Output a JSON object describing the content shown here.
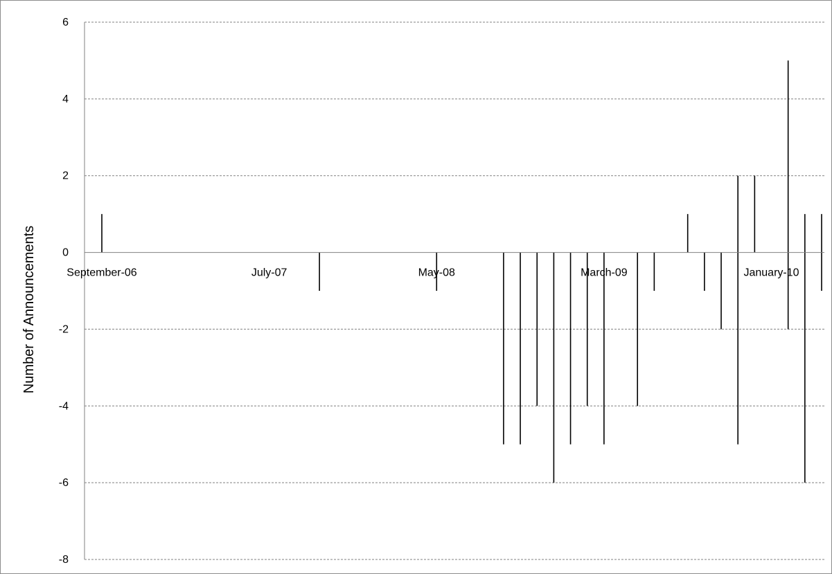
{
  "chart_data": {
    "type": "bar",
    "title": "",
    "xlabel": "",
    "ylabel": "Number of Announcements",
    "ylim": [
      -8,
      6
    ],
    "yticks": [
      -8,
      -6,
      -4,
      -2,
      0,
      2,
      4,
      6
    ],
    "grid": true,
    "legend": "none",
    "x_tick_labels": [
      "September-06",
      "July-07",
      "May-08",
      "March-09",
      "January-10"
    ],
    "x_tick_months": [
      "2006-09",
      "2007-07",
      "2008-05",
      "2009-03",
      "2010-01"
    ],
    "x_range": [
      "2006-08",
      "2010-08"
    ],
    "series": [
      {
        "months": [
          "2006-09",
          "2007-10",
          "2008-05",
          "2008-09",
          "2008-10",
          "2008-11",
          "2008-12",
          "2009-01",
          "2009-02",
          "2009-03",
          "2009-05",
          "2009-06",
          "2009-08",
          "2009-09",
          "2009-10",
          "2009-11",
          "2009-12",
          "2010-01",
          "2010-02",
          "2010-03",
          "2010-04"
        ],
        "values": [
          1,
          0,
          0,
          0,
          0,
          0,
          0,
          0,
          0,
          0,
          0,
          0,
          1,
          0,
          0,
          2,
          2,
          0,
          5,
          1,
          1
        ]
      },
      {
        "months": [
          "2006-09",
          "2007-10",
          "2008-05",
          "2008-09",
          "2008-10",
          "2008-11",
          "2008-12",
          "2009-01",
          "2009-02",
          "2009-03",
          "2009-05",
          "2009-06",
          "2009-08",
          "2009-09",
          "2009-10",
          "2009-11",
          "2009-12",
          "2010-01",
          "2010-02",
          "2010-03",
          "2010-04"
        ],
        "values": [
          0,
          -1,
          -1,
          -5,
          -5,
          -4,
          -6,
          -5,
          -4,
          -5,
          -4,
          -1,
          0,
          -1,
          -2,
          -5,
          0,
          0,
          -2,
          -6,
          -1
        ]
      }
    ],
    "colors": {
      "bars": "#000000",
      "grid": "#808080",
      "axis": "#808080",
      "frame": "#8c8c8c"
    }
  }
}
